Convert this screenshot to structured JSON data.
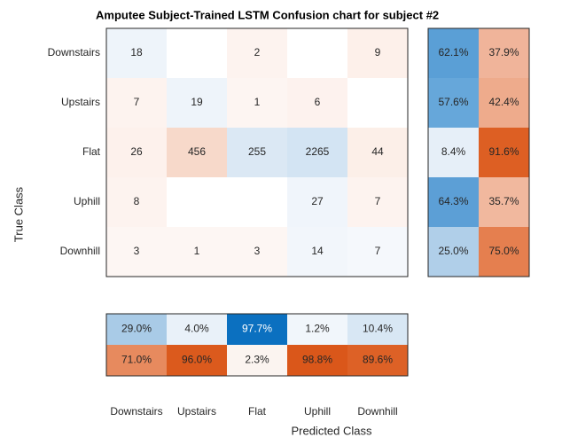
{
  "chart_data": {
    "type": "confusion",
    "title": "Amputee Subject-Trained LSTM Confusion chart for subject #2",
    "xlabel": "Predicted Class",
    "ylabel": "True Class",
    "categories": [
      "Downstairs",
      "Upstairs",
      "Flat",
      "Uphill",
      "Downhill"
    ],
    "matrix": [
      [
        18,
        null,
        2,
        null,
        9
      ],
      [
        7,
        19,
        1,
        6,
        null
      ],
      [
        26,
        456,
        255,
        2265,
        44
      ],
      [
        8,
        null,
        null,
        27,
        7
      ],
      [
        3,
        1,
        3,
        14,
        7
      ]
    ],
    "matrix_colors": [
      [
        "#eef4fa",
        "#ffffff",
        "#fdf3ef",
        "#ffffff",
        "#fdf0ea"
      ],
      [
        "#fdf3ef",
        "#eef4fa",
        "#fdf5f2",
        "#fdf2ee",
        "#ffffff"
      ],
      [
        "#fdf1ec",
        "#f7d9ca",
        "#dbe8f4",
        "#d3e4f3",
        "#fcefe8"
      ],
      [
        "#fdf3ef",
        "#ffffff",
        "#ffffff",
        "#f0f5fb",
        "#fdf3ef"
      ],
      [
        "#fdf6f3",
        "#fdf6f3",
        "#fdf6f3",
        "#f2f6fb",
        "#f5f8fc"
      ]
    ],
    "row_summary": [
      [
        62.1,
        37.9
      ],
      [
        57.6,
        42.4
      ],
      [
        8.4,
        91.6
      ],
      [
        64.3,
        35.7
      ],
      [
        25.0,
        75.0
      ]
    ],
    "row_summary_labels": [
      [
        "62.1%",
        "37.9%"
      ],
      [
        "57.6%",
        "42.4%"
      ],
      [
        "8.4%",
        "91.6%"
      ],
      [
        "64.3%",
        "35.7%"
      ],
      [
        "25.0%",
        "75.0%"
      ]
    ],
    "row_summary_colors": [
      [
        "#5a9fd6",
        "#f0b49a"
      ],
      [
        "#66a7da",
        "#eeab8c"
      ],
      [
        "#e6eff8",
        "#dd5f23"
      ],
      [
        "#5c9fd6",
        "#f1b89e"
      ],
      [
        "#b0cfe9",
        "#e57f4f"
      ]
    ],
    "column_summary": [
      [
        29.0,
        4.0,
        97.7,
        1.2,
        10.4
      ],
      [
        71.0,
        96.0,
        2.3,
        98.8,
        89.6
      ]
    ],
    "column_summary_labels": [
      [
        "29.0%",
        "4.0%",
        "97.7%",
        "1.2%",
        "10.4%"
      ],
      [
        "71.0%",
        "96.0%",
        "2.3%",
        "98.8%",
        "89.6%"
      ]
    ],
    "column_summary_colors": [
      [
        "#a9cbe7",
        "#e9f1f9",
        "#0b70c0",
        "#f1f6fb",
        "#d8e7f4"
      ],
      [
        "#e78a5e",
        "#db5a1d",
        "#fbf4f0",
        "#da571a",
        "#dd6126"
      ]
    ]
  }
}
